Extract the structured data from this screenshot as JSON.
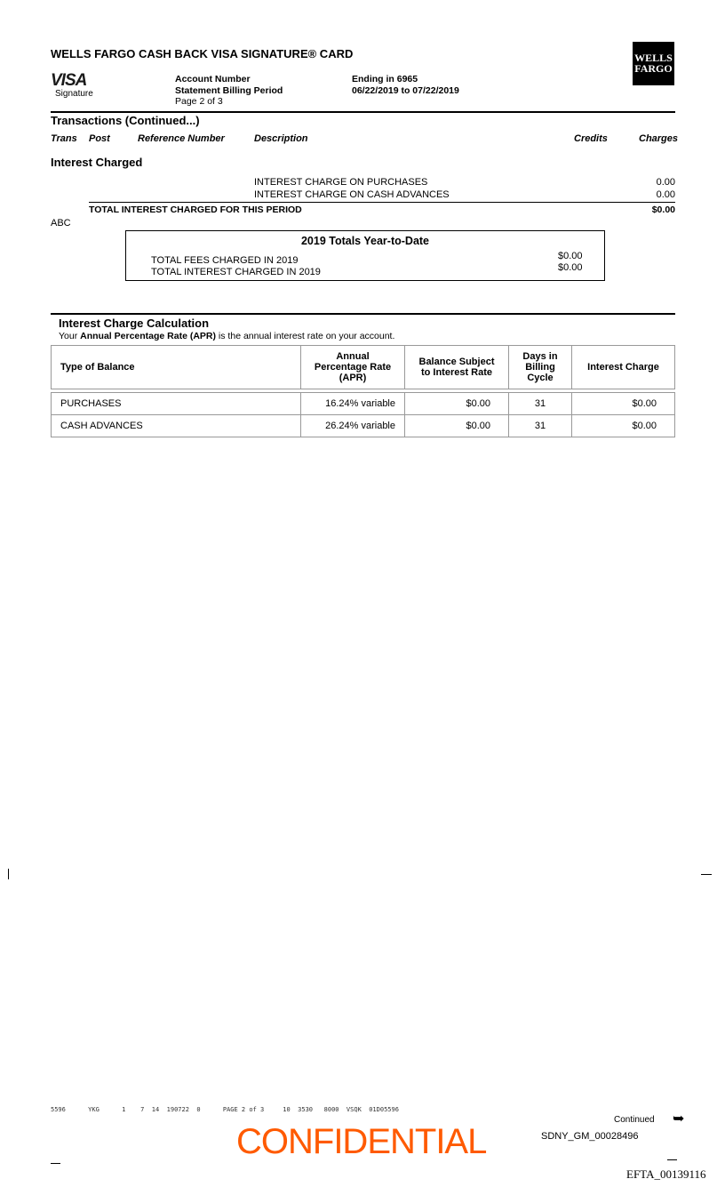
{
  "header": {
    "title": "WELLS FARGO CASH BACK VISA SIGNATURE® CARD",
    "visa": "VISA",
    "visa_sub": "Signature",
    "logo": "WELLS FARGO",
    "account_label": "Account Number",
    "account_value": "Ending in 6965",
    "period_label": "Statement Billing Period",
    "period_value": "06/22/2019 to 07/22/2019",
    "page": "Page 2 of 3"
  },
  "transactions": {
    "title": "Transactions (Continued...)",
    "columns": [
      "Trans",
      "Post",
      "Reference Number",
      "Description",
      "Credits",
      "Charges"
    ],
    "section": "Interest Charged",
    "rows": [
      {
        "description": "INTEREST CHARGE ON PURCHASES",
        "charges": "0.00"
      },
      {
        "description": "INTEREST CHARGE ON CASH ADVANCES",
        "charges": "0.00"
      }
    ],
    "total_label": "TOTAL INTEREST CHARGED FOR THIS PERIOD",
    "total_value": "$0.00",
    "abc": "ABC"
  },
  "ytd": {
    "title": "2019 Totals Year-to-Date",
    "rows": [
      {
        "label": "TOTAL FEES CHARGED IN 2019",
        "value": "$0.00"
      },
      {
        "label": "TOTAL INTEREST CHARGED IN 2019",
        "value": "$0.00"
      }
    ]
  },
  "interest_calc": {
    "title": "Interest Charge Calculation",
    "intro_pre": "Your ",
    "intro_bold": "Annual Percentage Rate (APR)",
    "intro_post": " is the annual interest rate on your account.",
    "columns": [
      "Type of Balance",
      "Annual Percentage Rate (APR)",
      "Balance Subject to Interest Rate",
      "Days in Billing Cycle",
      "Interest Charge"
    ],
    "rows": [
      [
        "PURCHASES",
        "16.24% variable",
        "$0.00",
        "31",
        "$0.00"
      ],
      [
        "CASH ADVANCES",
        "26.24% variable",
        "$0.00",
        "31",
        "$0.00"
      ]
    ]
  },
  "footer": {
    "code_line": "5596      YKG      1    7  14  190722  0      PAGE 2 of 3     10  3530   8000  VSQK  01D05596",
    "confidential": "CONFIDENTIAL",
    "continued": "Continued",
    "sdny": "SDNY_GM_00028496",
    "efta": "EFTA_00139116"
  },
  "colors": {
    "confidential": "#ff5a00"
  }
}
